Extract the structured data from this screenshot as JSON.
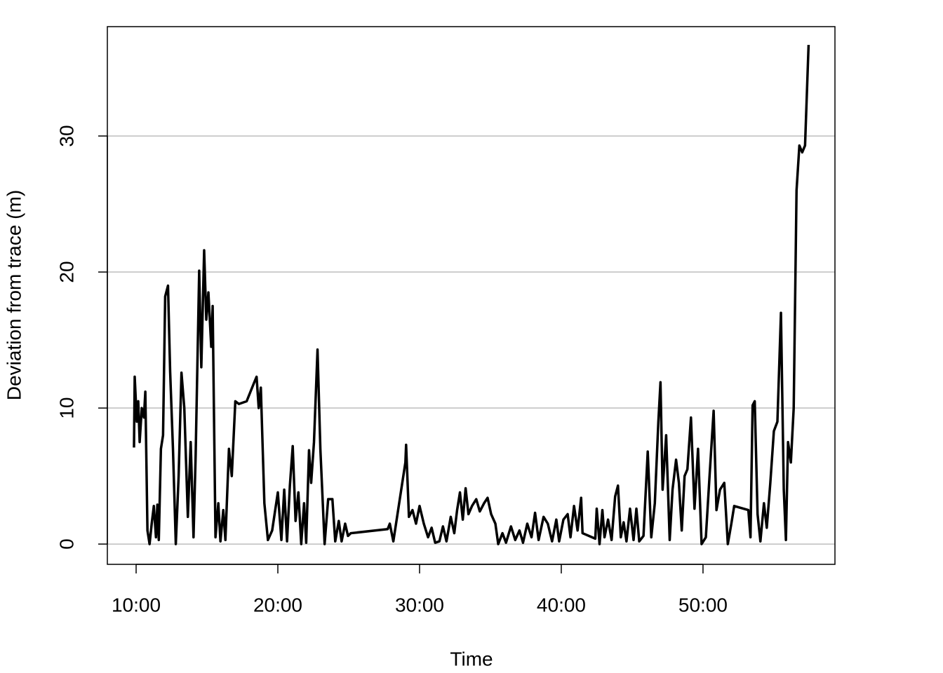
{
  "chart_data": {
    "type": "line",
    "x_label": "Time",
    "y_label": "Deviation from trace (m)",
    "x": [
      9.85,
      9.9,
      10.05,
      10.15,
      10.25,
      10.4,
      10.55,
      10.65,
      10.8,
      10.95,
      11.1,
      11.25,
      11.4,
      11.5,
      11.6,
      11.75,
      11.9,
      12.05,
      12.25,
      12.4,
      12.6,
      12.8,
      13.0,
      13.2,
      13.4,
      13.65,
      13.85,
      14.05,
      14.2,
      14.45,
      14.6,
      14.8,
      14.95,
      15.1,
      15.3,
      15.4,
      15.6,
      15.8,
      15.95,
      16.15,
      16.3,
      16.55,
      16.75,
      17.0,
      17.25,
      17.8,
      18.3,
      18.5,
      18.65,
      18.8,
      19.05,
      19.3,
      19.6,
      20.0,
      20.25,
      20.45,
      20.65,
      20.85,
      21.05,
      21.25,
      21.45,
      21.65,
      21.85,
      22.0,
      22.2,
      22.35,
      22.55,
      22.8,
      23.0,
      23.3,
      23.55,
      23.85,
      24.05,
      24.3,
      24.5,
      24.75,
      24.95,
      25.15,
      27.75,
      27.9,
      28.15,
      29.0,
      29.05,
      29.25,
      29.5,
      29.75,
      30.0,
      30.3,
      30.6,
      30.85,
      31.1,
      31.4,
      31.65,
      31.9,
      32.2,
      32.45,
      32.65,
      32.85,
      33.05,
      33.25,
      33.45,
      33.7,
      34.0,
      34.25,
      34.55,
      34.8,
      35.05,
      35.35,
      35.55,
      35.85,
      36.1,
      36.45,
      36.75,
      37.05,
      37.3,
      37.6,
      37.9,
      38.15,
      38.4,
      38.75,
      39.05,
      39.35,
      39.65,
      39.85,
      40.15,
      40.45,
      40.65,
      40.9,
      41.15,
      41.4,
      41.5,
      42.4,
      42.5,
      42.7,
      42.9,
      43.05,
      43.3,
      43.55,
      43.8,
      44.0,
      44.2,
      44.4,
      44.6,
      44.85,
      45.1,
      45.3,
      45.5,
      45.8,
      46.1,
      46.35,
      46.6,
      46.85,
      47.0,
      47.15,
      47.4,
      47.65,
      47.85,
      48.1,
      48.3,
      48.5,
      48.7,
      48.9,
      49.15,
      49.4,
      49.65,
      49.9,
      50.2,
      50.45,
      50.75,
      50.95,
      51.2,
      51.5,
      51.75,
      52.0,
      52.2,
      53.2,
      53.35,
      53.5,
      53.65,
      53.85,
      54.05,
      54.3,
      54.5,
      54.75,
      55.0,
      55.25,
      55.5,
      55.7,
      55.85,
      56.0,
      56.2,
      56.4,
      56.6,
      56.8,
      57.0,
      57.2,
      57.45
    ],
    "series": [
      {
        "color": "#000000",
        "values": [
          7.1,
          12.3,
          9,
          10.5,
          7.5,
          10,
          9.3,
          11.2,
          1,
          0,
          1.5,
          2.8,
          0.5,
          2.9,
          0.3,
          7,
          8,
          18.2,
          19,
          12.7,
          7,
          0,
          5,
          12.6,
          10,
          2,
          7.5,
          0.5,
          6.5,
          20.1,
          13,
          21.6,
          16.5,
          18.5,
          14.5,
          17.5,
          0.5,
          3,
          0.2,
          2.5,
          0.3,
          7,
          5,
          10.5,
          10.3,
          10.5,
          11.8,
          12.3,
          10,
          11.5,
          3,
          0.3,
          1,
          3.8,
          0.3,
          4,
          0.2,
          4.3,
          7.2,
          1.7,
          3.8,
          0,
          3,
          0.1,
          6.9,
          4.5,
          7.5,
          14.3,
          7,
          0,
          3.3,
          3.3,
          0.2,
          1.7,
          0.2,
          1.5,
          0.6,
          0.8,
          1.1,
          1.5,
          0.2,
          6,
          7.3,
          2,
          2.5,
          1.5,
          2.8,
          1.5,
          0.5,
          1.2,
          0.1,
          0.2,
          1.3,
          0.2,
          2,
          0.8,
          2.5,
          3.8,
          1.8,
          4.1,
          2.2,
          2.8,
          3.3,
          2.4,
          3,
          3.4,
          2.2,
          1.5,
          0,
          0.8,
          0.1,
          1.3,
          0.3,
          1,
          0.1,
          1.5,
          0.5,
          2.3,
          0.3,
          2,
          1.5,
          0.2,
          1.8,
          0.2,
          1.8,
          2.2,
          0.5,
          2.8,
          1,
          3.4,
          0.8,
          0.4,
          2.6,
          0,
          2.5,
          0.5,
          1.8,
          0.3,
          3.5,
          4.3,
          0.5,
          1.6,
          0.2,
          2.6,
          0.3,
          2.6,
          0.2,
          0.6,
          6.8,
          0.5,
          3,
          9,
          11.9,
          4,
          8,
          0.3,
          4,
          6.2,
          4.5,
          1,
          5,
          5.5,
          9.3,
          2.6,
          7,
          0,
          0.5,
          4.8,
          9.8,
          2.5,
          4,
          4.5,
          0,
          1.5,
          2.8,
          2.5,
          0.5,
          10.2,
          10.5,
          2.2,
          0.2,
          3,
          1.2,
          4.5,
          8.3,
          9,
          17,
          4,
          0.3,
          7.5,
          6,
          10,
          26,
          29.3,
          28.8,
          29.3,
          36.7
        ]
      }
    ],
    "xlim": [
      7.97,
      59.31
    ],
    "ylim": [
      -1.49,
      38.04
    ],
    "xticks": [
      {
        "value": 10,
        "label": "10:00"
      },
      {
        "value": 20,
        "label": "20:00"
      },
      {
        "value": 30,
        "label": "30:00"
      },
      {
        "value": 40,
        "label": "40:00"
      },
      {
        "value": 50,
        "label": "50:00"
      }
    ],
    "yticks": [
      0,
      10,
      20,
      30
    ],
    "grid": true
  }
}
